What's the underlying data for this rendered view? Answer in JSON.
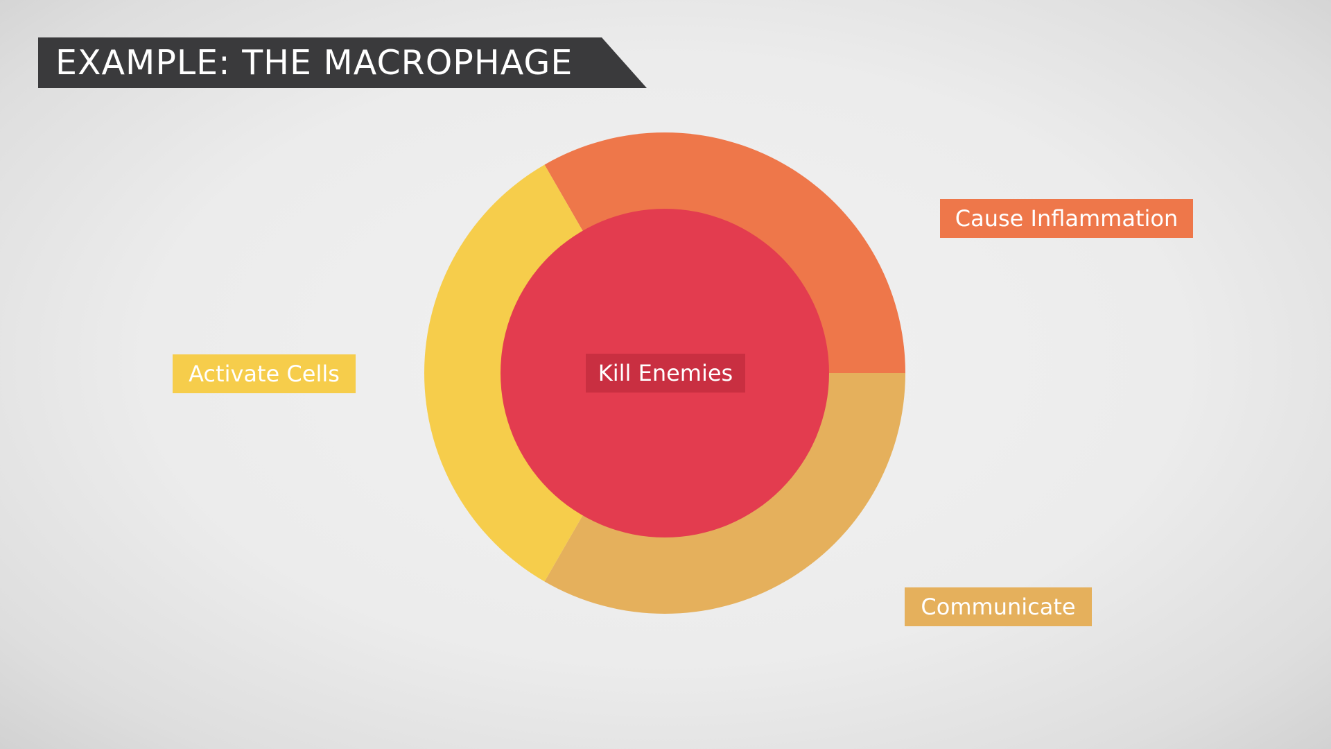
{
  "title": "EXAMPLE: THE MACROPHAGE",
  "center": {
    "label": "Kill Enemies",
    "color": "#e33c4f",
    "label_bg": "#c92f41"
  },
  "segments": [
    {
      "name": "Cause Inflammation",
      "color": "#ee774a",
      "angle_start": -120,
      "angle_end": 0
    },
    {
      "name": "Communicate",
      "color": "#e5b05c",
      "angle_start": 0,
      "angle_end": 120
    },
    {
      "name": "Activate Cells",
      "color": "#f6cd4b",
      "angle_start": 120,
      "angle_end": 240
    }
  ]
}
